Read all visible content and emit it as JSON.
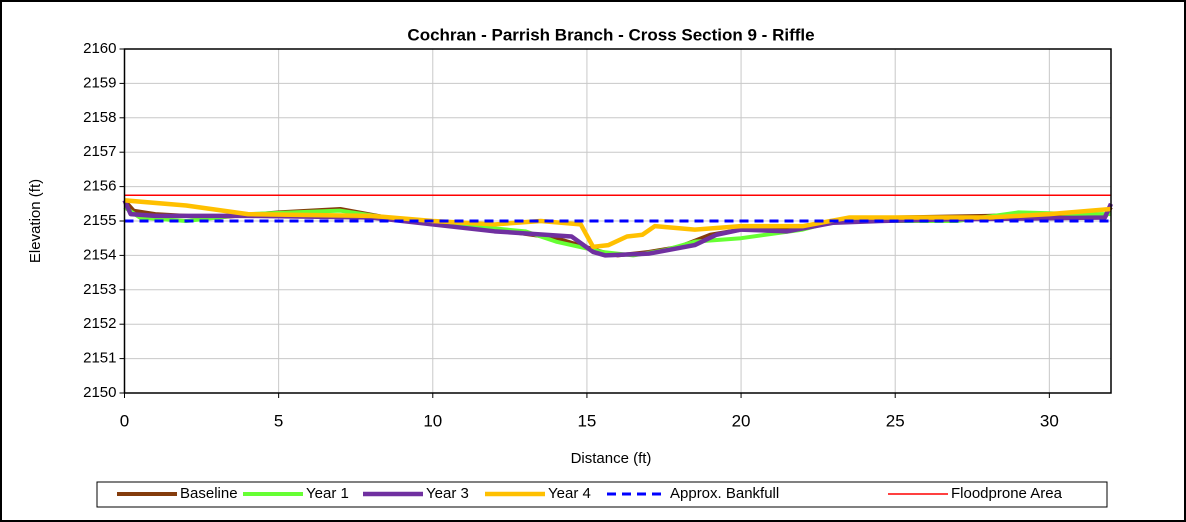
{
  "chart_data": {
    "type": "line",
    "title": "Cochran - Parrish Branch - Cross Section 9 - Riffle",
    "xlabel": "Distance (ft)",
    "ylabel": "Elevation (ft)",
    "xlim": [
      0,
      32
    ],
    "xticks": [
      0,
      5,
      10,
      15,
      20,
      25,
      30
    ],
    "ylim": [
      2150,
      2160
    ],
    "yticks": [
      2150,
      2151,
      2152,
      2153,
      2154,
      2155,
      2156,
      2157,
      2158,
      2159,
      2160
    ],
    "grid": true,
    "legend": "bottom",
    "series": [
      {
        "name": "Baseline",
        "color": "#843c0c",
        "x": [
          0,
          0.3,
          1,
          3,
          5,
          7,
          8.5,
          10,
          12,
          14,
          15.5,
          16,
          17,
          18,
          19,
          20,
          22,
          23.5,
          25,
          28,
          30,
          31.8,
          32
        ],
        "values": [
          2155.6,
          2155.3,
          2155.2,
          2155.1,
          2155.25,
          2155.35,
          2155.1,
          2154.9,
          2154.75,
          2154.5,
          2154.1,
          2154.0,
          2154.1,
          2154.25,
          2154.6,
          2154.75,
          2154.8,
          2155.05,
          2155.1,
          2155.15,
          2155.2,
          2155.1,
          2155.4
        ]
      },
      {
        "name": "Year 1",
        "color": "#66ff33",
        "x": [
          0,
          0.5,
          2,
          4,
          7,
          8.5,
          10,
          13,
          14,
          15.5,
          16.5,
          17.5,
          18.5,
          20,
          22,
          23.5,
          25,
          27,
          29,
          31,
          32
        ],
        "values": [
          2155.4,
          2155.1,
          2155.0,
          2155.2,
          2155.3,
          2155.1,
          2154.95,
          2154.7,
          2154.4,
          2154.1,
          2154.0,
          2154.15,
          2154.4,
          2154.5,
          2154.75,
          2155.1,
          2155.0,
          2155.0,
          2155.25,
          2155.2,
          2155.2
        ]
      },
      {
        "name": "Year 3",
        "color": "#7030a0",
        "x": [
          0,
          0.2,
          1,
          4,
          8,
          10,
          12,
          14.5,
          15.2,
          15.6,
          17,
          18.5,
          19.2,
          20,
          21.5,
          23,
          24.5,
          27,
          31.8,
          32
        ],
        "values": [
          2155.6,
          2155.2,
          2155.15,
          2155.15,
          2155.1,
          2154.9,
          2154.7,
          2154.55,
          2154.1,
          2154.0,
          2154.05,
          2154.3,
          2154.6,
          2154.75,
          2154.7,
          2154.95,
          2155.0,
          2155.05,
          2155.1,
          2155.5
        ]
      },
      {
        "name": "Year 4",
        "color": "#ffc000",
        "x": [
          0,
          2,
          4,
          8,
          10,
          12,
          13.5,
          14.8,
          15.2,
          15.7,
          16.3,
          16.8,
          17.2,
          18.5,
          20,
          22,
          23.5,
          25,
          28,
          30,
          32
        ],
        "values": [
          2155.6,
          2155.45,
          2155.2,
          2155.15,
          2155.0,
          2154.9,
          2155.0,
          2154.9,
          2154.25,
          2154.3,
          2154.55,
          2154.6,
          2154.85,
          2154.75,
          2154.85,
          2154.85,
          2155.1,
          2155.1,
          2155.1,
          2155.2,
          2155.35
        ]
      },
      {
        "name": "Approx. Bankfull",
        "color": "#0000ff",
        "dashed": true,
        "x": [
          0,
          32
        ],
        "values": [
          2155,
          2155
        ]
      },
      {
        "name": "Floodprone Area",
        "color": "#ff0000",
        "x": [
          0,
          32
        ],
        "values": [
          2155.75,
          2155.75
        ]
      }
    ]
  }
}
